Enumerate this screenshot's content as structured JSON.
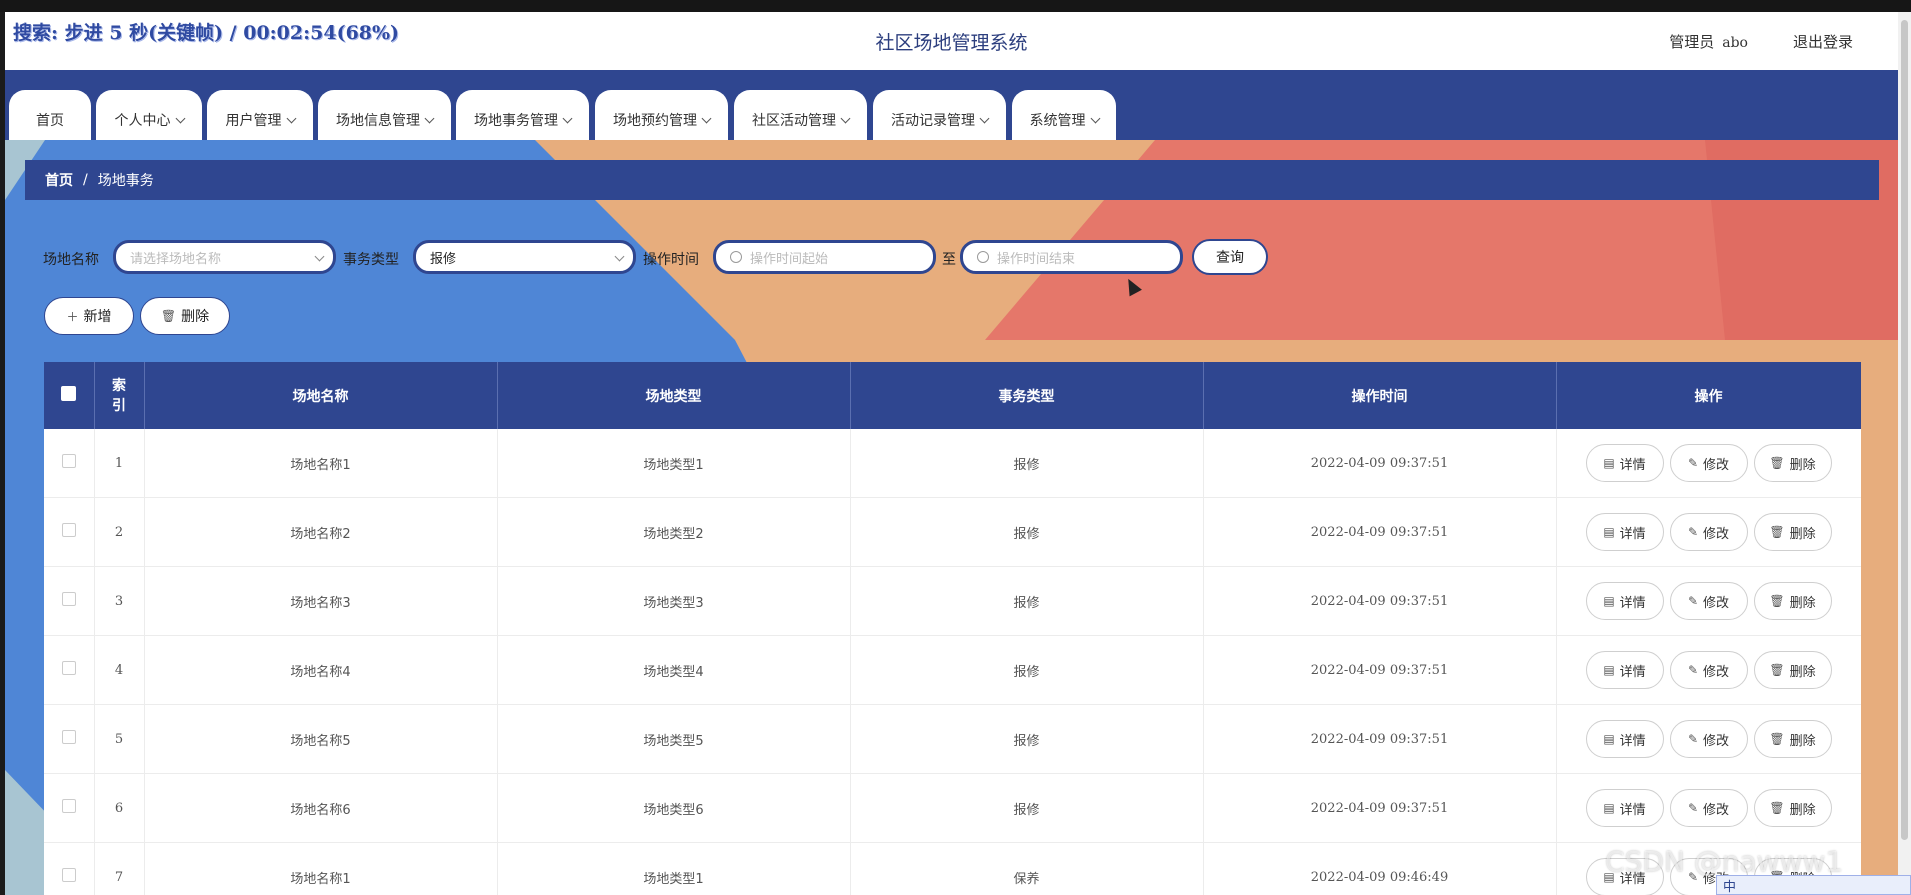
{
  "recording_overlay": "搜索: 步进 5 秒(关键帧) / 00:02:54(68%)",
  "header": {
    "title": "社区场地管理系统",
    "user_role": "管理员",
    "username": "abo",
    "logout_label": "退出登录"
  },
  "nav": {
    "items": [
      {
        "label": "首页"
      },
      {
        "label": "个人中心"
      },
      {
        "label": "用户管理"
      },
      {
        "label": "场地信息管理"
      },
      {
        "label": "场地事务管理"
      },
      {
        "label": "场地预约管理"
      },
      {
        "label": "社区活动管理"
      },
      {
        "label": "活动记录管理"
      },
      {
        "label": "系统管理"
      }
    ]
  },
  "breadcrumb": {
    "home": "首页",
    "separator": "/",
    "current": "场地事务"
  },
  "filters": {
    "venue_label": "场地名称",
    "venue_placeholder": "请选择场地名称",
    "type_label": "事务类型",
    "type_value": "报修",
    "time_label": "操作时间",
    "time_start_placeholder": "操作时间起始",
    "to_label": "至",
    "time_end_placeholder": "操作时间结束",
    "query_label": "查询"
  },
  "actions": {
    "add_label": "新增",
    "delete_label": "删除"
  },
  "table": {
    "headers": {
      "index": "索引",
      "venue_name": "场地名称",
      "venue_type": "场地类型",
      "affair_type": "事务类型",
      "time": "操作时间",
      "ops": "操作"
    },
    "rows": [
      {
        "index": "1",
        "venue_name": "场地名称1",
        "venue_type": "场地类型1",
        "affair_type": "报修",
        "time": "2022-04-09 09:37:51"
      },
      {
        "index": "2",
        "venue_name": "场地名称2",
        "venue_type": "场地类型2",
        "affair_type": "报修",
        "time": "2022-04-09 09:37:51"
      },
      {
        "index": "3",
        "venue_name": "场地名称3",
        "venue_type": "场地类型3",
        "affair_type": "报修",
        "time": "2022-04-09 09:37:51"
      },
      {
        "index": "4",
        "venue_name": "场地名称4",
        "venue_type": "场地类型4",
        "affair_type": "报修",
        "time": "2022-04-09 09:37:51"
      },
      {
        "index": "5",
        "venue_name": "场地名称5",
        "venue_type": "场地类型5",
        "affair_type": "报修",
        "time": "2022-04-09 09:37:51"
      },
      {
        "index": "6",
        "venue_name": "场地名称6",
        "venue_type": "场地类型6",
        "affair_type": "报修",
        "time": "2022-04-09 09:37:51"
      },
      {
        "index": "7",
        "venue_name": "场地名称1",
        "venue_type": "场地类型1",
        "affair_type": "保养",
        "time": "2022-04-09 09:46:49"
      }
    ],
    "op_labels": {
      "detail": "详情",
      "edit": "修改",
      "delete": "删除"
    }
  },
  "watermark": "CSDN @nawww1",
  "ime": {
    "label": "中"
  },
  "colors": {
    "primary": "#2f4690",
    "bg_blue": "#4f86d6",
    "bg_peach": "#e7ad7d",
    "bg_coral": "#e5776a"
  }
}
